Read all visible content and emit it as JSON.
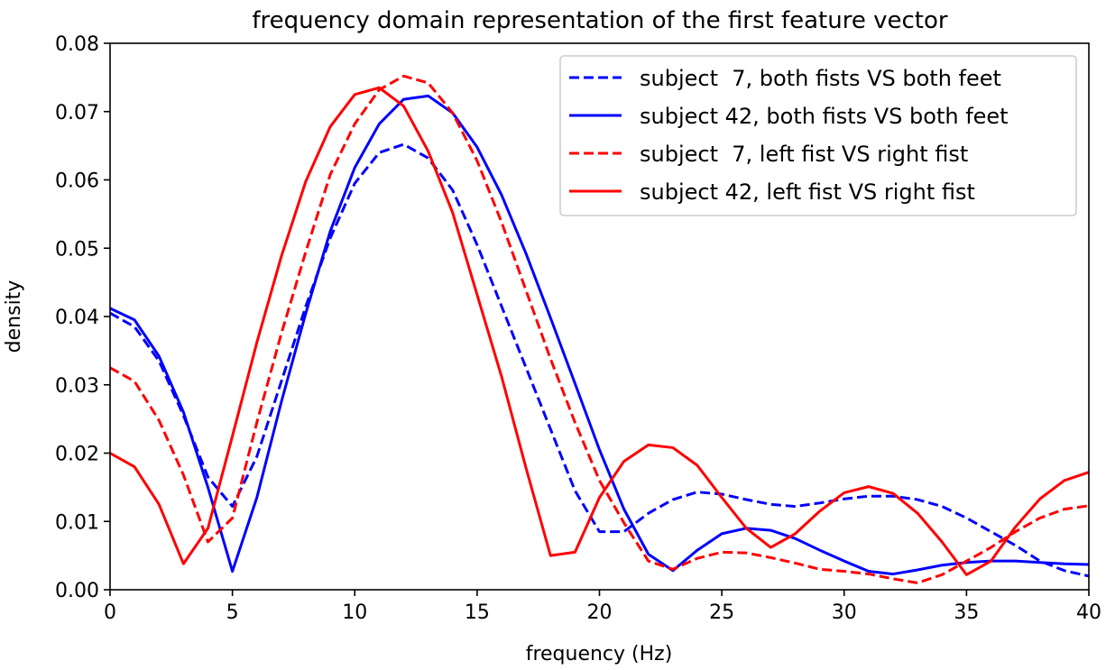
{
  "chart_data": {
    "type": "line",
    "title": "frequency domain representation of the first feature vector",
    "xlabel": "frequency (Hz)",
    "ylabel": "density",
    "xlim": [
      0,
      40
    ],
    "ylim": [
      0,
      0.08
    ],
    "xticks": [
      "0",
      "5",
      "10",
      "15",
      "20",
      "25",
      "30",
      "35",
      "40"
    ],
    "yticks": [
      "0.00",
      "0.01",
      "0.02",
      "0.03",
      "0.04",
      "0.05",
      "0.06",
      "0.07",
      "0.08"
    ],
    "grid": false,
    "legend_position": "top-right",
    "x": [
      0,
      1,
      2,
      3,
      4,
      5,
      6,
      7,
      8,
      9,
      10,
      11,
      12,
      13,
      14,
      15,
      16,
      17,
      18,
      19,
      20,
      21,
      22,
      23,
      24,
      25,
      26,
      27,
      28,
      29,
      30,
      31,
      32,
      33,
      34,
      35,
      36,
      37,
      38,
      39,
      40
    ],
    "series": [
      {
        "name": "subject  7, both fists VS both feet",
        "color": "#0000ff",
        "style": "dashed",
        "values": [
          0.0405,
          0.0385,
          0.0335,
          0.0255,
          0.0165,
          0.0122,
          0.0195,
          0.0305,
          0.0415,
          0.0515,
          0.0595,
          0.064,
          0.0652,
          0.0632,
          0.0585,
          0.0505,
          0.0415,
          0.0325,
          0.0235,
          0.0145,
          0.0085,
          0.0085,
          0.0112,
          0.0132,
          0.0143,
          0.014,
          0.0132,
          0.0125,
          0.0122,
          0.0127,
          0.0133,
          0.0137,
          0.0137,
          0.0132,
          0.0122,
          0.0105,
          0.0085,
          0.0065,
          0.0042,
          0.0028,
          0.002
        ]
      },
      {
        "name": "subject 42, both fists VS both feet",
        "color": "#0000ff",
        "style": "solid",
        "values": [
          0.0412,
          0.0395,
          0.0342,
          0.026,
          0.015,
          0.0027,
          0.0135,
          0.0275,
          0.0405,
          0.0525,
          0.0618,
          0.0682,
          0.0718,
          0.0723,
          0.0698,
          0.0648,
          0.0578,
          0.0492,
          0.0398,
          0.0302,
          0.0205,
          0.0118,
          0.0052,
          0.0028,
          0.0058,
          0.0082,
          0.009,
          0.0087,
          0.0075,
          0.0058,
          0.0042,
          0.0027,
          0.0023,
          0.0029,
          0.0036,
          0.004,
          0.0042,
          0.0042,
          0.004,
          0.0038,
          0.0037
        ]
      },
      {
        "name": "subject  7, left fist VS right fist",
        "color": "#ff0000",
        "style": "dashed",
        "values": [
          0.0325,
          0.0305,
          0.0248,
          0.0168,
          0.007,
          0.0105,
          0.0245,
          0.0375,
          0.0495,
          0.0608,
          0.0682,
          0.0732,
          0.0752,
          0.0742,
          0.0698,
          0.0628,
          0.0538,
          0.0438,
          0.0338,
          0.0245,
          0.016,
          0.0098,
          0.0042,
          0.003,
          0.0046,
          0.0055,
          0.0054,
          0.0047,
          0.0039,
          0.003,
          0.0027,
          0.0023,
          0.0016,
          0.001,
          0.0022,
          0.0042,
          0.0062,
          0.0085,
          0.0105,
          0.0118,
          0.0123
        ]
      },
      {
        "name": "subject 42, left fist VS right fist",
        "color": "#ff0000",
        "style": "solid",
        "values": [
          0.02,
          0.018,
          0.0125,
          0.0038,
          0.009,
          0.0225,
          0.0362,
          0.0488,
          0.0598,
          0.0678,
          0.0725,
          0.0735,
          0.0708,
          0.0642,
          0.0552,
          0.0432,
          0.0312,
          0.0178,
          0.005,
          0.0055,
          0.0135,
          0.0188,
          0.0212,
          0.0208,
          0.0182,
          0.0135,
          0.009,
          0.0062,
          0.0082,
          0.0115,
          0.0142,
          0.0151,
          0.0141,
          0.0112,
          0.007,
          0.0022,
          0.0042,
          0.0092,
          0.0133,
          0.016,
          0.0172
        ]
      }
    ]
  }
}
